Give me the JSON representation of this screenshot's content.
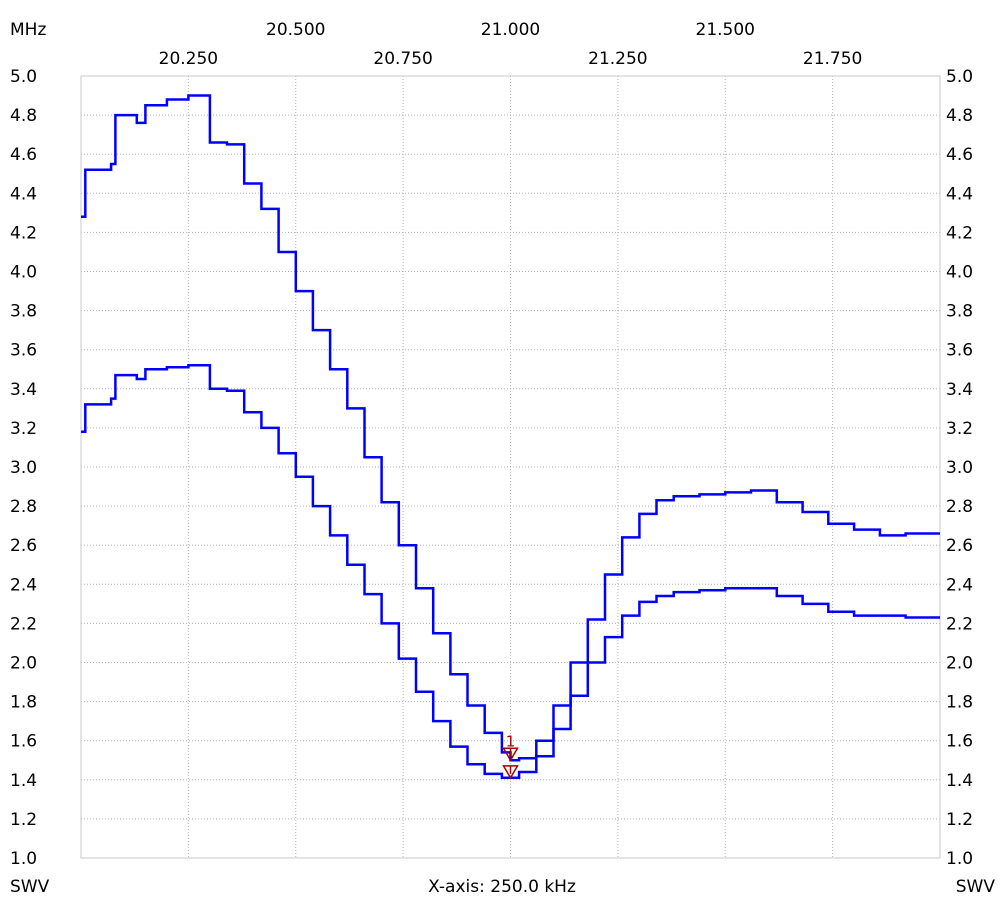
{
  "chart_data": {
    "type": "line",
    "title": "",
    "freq_unit_label": "MHz",
    "x_axis_caption": "X-axis: 250.0 kHz",
    "y_label_left": "SWV",
    "y_label_right": "SWV",
    "xlim": [
      20.0,
      22.0
    ],
    "ylim": [
      1.0,
      5.0
    ],
    "y_ticks": [
      "1.0",
      "1.2",
      "1.4",
      "1.6",
      "1.8",
      "2.0",
      "2.2",
      "2.4",
      "2.6",
      "2.8",
      "3.0",
      "3.2",
      "3.4",
      "3.6",
      "3.8",
      "4.0",
      "4.2",
      "4.4",
      "4.6",
      "4.8",
      "5.0"
    ],
    "x_ticks_upper": [
      "20.500",
      "21.000",
      "21.500"
    ],
    "x_ticks_lower": [
      "20.250",
      "20.750",
      "21.250",
      "21.750"
    ],
    "grid": true,
    "series": [
      {
        "color": "#0000ff",
        "x": [
          20.0,
          20.01,
          20.07,
          20.08,
          20.13,
          20.15,
          20.2,
          20.25,
          20.28,
          20.3,
          20.34,
          20.38,
          20.42,
          20.46,
          20.5,
          20.54,
          20.58,
          20.62,
          20.66,
          20.7,
          20.74,
          20.78,
          20.82,
          20.86,
          20.9,
          20.94,
          20.98,
          21.0,
          21.02,
          21.06,
          21.1,
          21.14,
          21.18,
          21.22,
          21.26,
          21.3,
          21.34,
          21.38,
          21.44,
          21.5,
          21.56,
          21.62,
          21.68,
          21.74,
          21.8,
          21.86,
          21.92,
          21.98,
          22.0
        ],
        "y": [
          4.28,
          4.52,
          4.55,
          4.8,
          4.76,
          4.85,
          4.88,
          4.9,
          4.9,
          4.66,
          4.65,
          4.45,
          4.32,
          4.1,
          3.9,
          3.7,
          3.5,
          3.3,
          3.05,
          2.82,
          2.6,
          2.38,
          2.15,
          1.94,
          1.78,
          1.64,
          1.54,
          1.5,
          1.51,
          1.6,
          1.78,
          2.0,
          2.22,
          2.45,
          2.64,
          2.76,
          2.83,
          2.85,
          2.86,
          2.87,
          2.88,
          2.82,
          2.77,
          2.71,
          2.68,
          2.65,
          2.66,
          2.66,
          2.66
        ]
      },
      {
        "color": "#0000ff",
        "x": [
          20.0,
          20.01,
          20.07,
          20.08,
          20.13,
          20.15,
          20.2,
          20.25,
          20.28,
          20.3,
          20.34,
          20.38,
          20.42,
          20.46,
          20.5,
          20.54,
          20.58,
          20.62,
          20.66,
          20.7,
          20.74,
          20.78,
          20.82,
          20.86,
          20.9,
          20.94,
          20.98,
          21.0,
          21.02,
          21.06,
          21.1,
          21.14,
          21.18,
          21.22,
          21.26,
          21.3,
          21.34,
          21.38,
          21.44,
          21.5,
          21.56,
          21.62,
          21.68,
          21.74,
          21.8,
          21.86,
          21.92,
          21.98,
          22.0
        ],
        "y": [
          3.18,
          3.32,
          3.35,
          3.47,
          3.45,
          3.5,
          3.51,
          3.52,
          3.52,
          3.4,
          3.39,
          3.28,
          3.2,
          3.07,
          2.95,
          2.8,
          2.65,
          2.5,
          2.35,
          2.2,
          2.02,
          1.85,
          1.7,
          1.57,
          1.48,
          1.43,
          1.41,
          1.41,
          1.44,
          1.52,
          1.66,
          1.83,
          2.0,
          2.13,
          2.24,
          2.31,
          2.34,
          2.36,
          2.37,
          2.38,
          2.38,
          2.34,
          2.3,
          2.26,
          2.24,
          2.24,
          2.23,
          2.23,
          2.23
        ]
      }
    ],
    "markers": [
      {
        "label": "1",
        "x": 21.0,
        "y": 1.5,
        "color": "#aa0000"
      },
      {
        "label": "",
        "x": 21.0,
        "y": 1.41,
        "color": "#aa0000"
      }
    ]
  }
}
